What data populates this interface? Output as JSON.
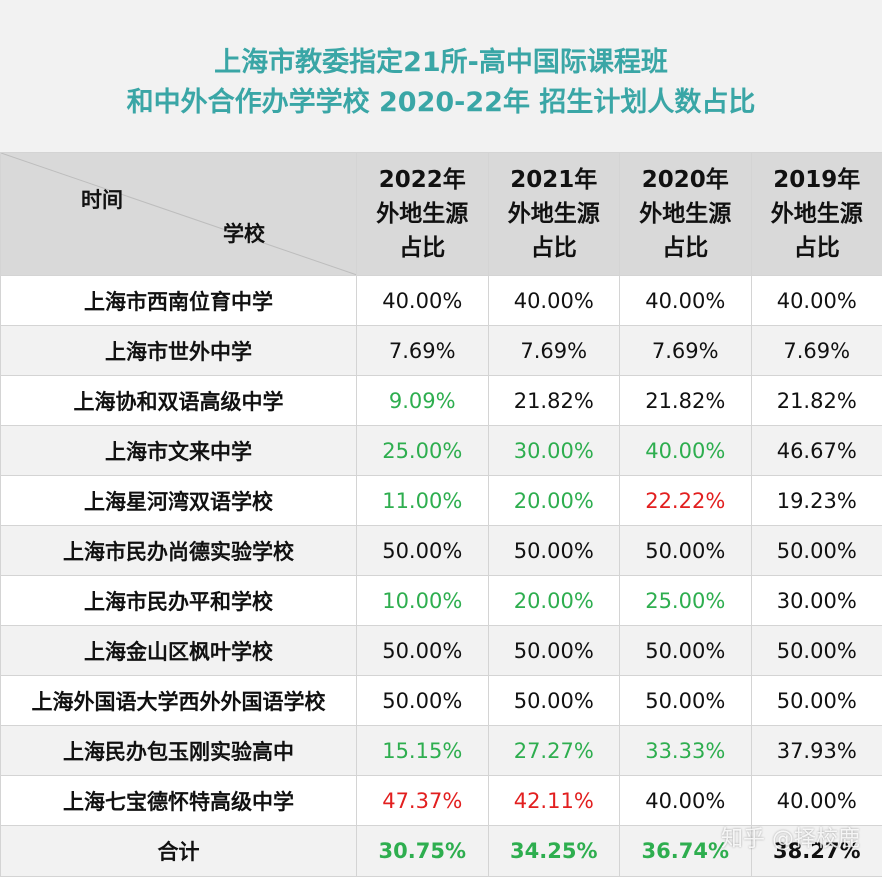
{
  "title": {
    "line1": "上海市教委指定21所-高中国际课程班",
    "line2": "和中外合作办学学校 2020-22年 招生计划人数占比"
  },
  "header": {
    "corner_top": "时间",
    "corner_bottom": "学校",
    "columns": [
      [
        "2022年",
        "外地生源",
        "占比"
      ],
      [
        "2021年",
        "外地生源",
        "占比"
      ],
      [
        "2020年",
        "外地生源",
        "占比"
      ],
      [
        "2019年",
        "外地生源",
        "占比"
      ]
    ]
  },
  "colors": {
    "green": "#2eae4f",
    "red": "#e21f1f",
    "black": "#111111",
    "title": "#3aa6a6"
  },
  "rows": [
    {
      "school": "上海市西南位育中学",
      "values": [
        "40.00%",
        "40.00%",
        "40.00%",
        "40.00%"
      ],
      "colors": [
        "black",
        "black",
        "black",
        "black"
      ]
    },
    {
      "school": "上海市世外中学",
      "values": [
        "7.69%",
        "7.69%",
        "7.69%",
        "7.69%"
      ],
      "colors": [
        "black",
        "black",
        "black",
        "black"
      ]
    },
    {
      "school": "上海协和双语高级中学",
      "values": [
        "9.09%",
        "21.82%",
        "21.82%",
        "21.82%"
      ],
      "colors": [
        "green",
        "black",
        "black",
        "black"
      ]
    },
    {
      "school": "上海市文来中学",
      "values": [
        "25.00%",
        "30.00%",
        "40.00%",
        "46.67%"
      ],
      "colors": [
        "green",
        "green",
        "green",
        "black"
      ]
    },
    {
      "school": "上海星河湾双语学校",
      "values": [
        "11.00%",
        "20.00%",
        "22.22%",
        "19.23%"
      ],
      "colors": [
        "green",
        "green",
        "red",
        "black"
      ]
    },
    {
      "school": "上海市民办尚德实验学校",
      "values": [
        "50.00%",
        "50.00%",
        "50.00%",
        "50.00%"
      ],
      "colors": [
        "black",
        "black",
        "black",
        "black"
      ]
    },
    {
      "school": "上海市民办平和学校",
      "values": [
        "10.00%",
        "20.00%",
        "25.00%",
        "30.00%"
      ],
      "colors": [
        "green",
        "green",
        "green",
        "black"
      ]
    },
    {
      "school": "上海金山区枫叶学校",
      "values": [
        "50.00%",
        "50.00%",
        "50.00%",
        "50.00%"
      ],
      "colors": [
        "black",
        "black",
        "black",
        "black"
      ]
    },
    {
      "school": "上海外国语大学西外外国语学校",
      "values": [
        "50.00%",
        "50.00%",
        "50.00%",
        "50.00%"
      ],
      "colors": [
        "black",
        "black",
        "black",
        "black"
      ]
    },
    {
      "school": "上海民办包玉刚实验高中",
      "values": [
        "15.15%",
        "27.27%",
        "33.33%",
        "37.93%"
      ],
      "colors": [
        "green",
        "green",
        "green",
        "black"
      ]
    },
    {
      "school": "上海七宝德怀特高级中学",
      "values": [
        "47.37%",
        "42.11%",
        "40.00%",
        "40.00%"
      ],
      "colors": [
        "red",
        "red",
        "black",
        "black"
      ]
    }
  ],
  "total": {
    "label": "合计",
    "values": [
      "30.75%",
      "34.25%",
      "36.74%",
      "38.27%"
    ],
    "colors": [
      "green",
      "green",
      "green",
      "black"
    ]
  },
  "watermark": "知乎 @择校鹿"
}
